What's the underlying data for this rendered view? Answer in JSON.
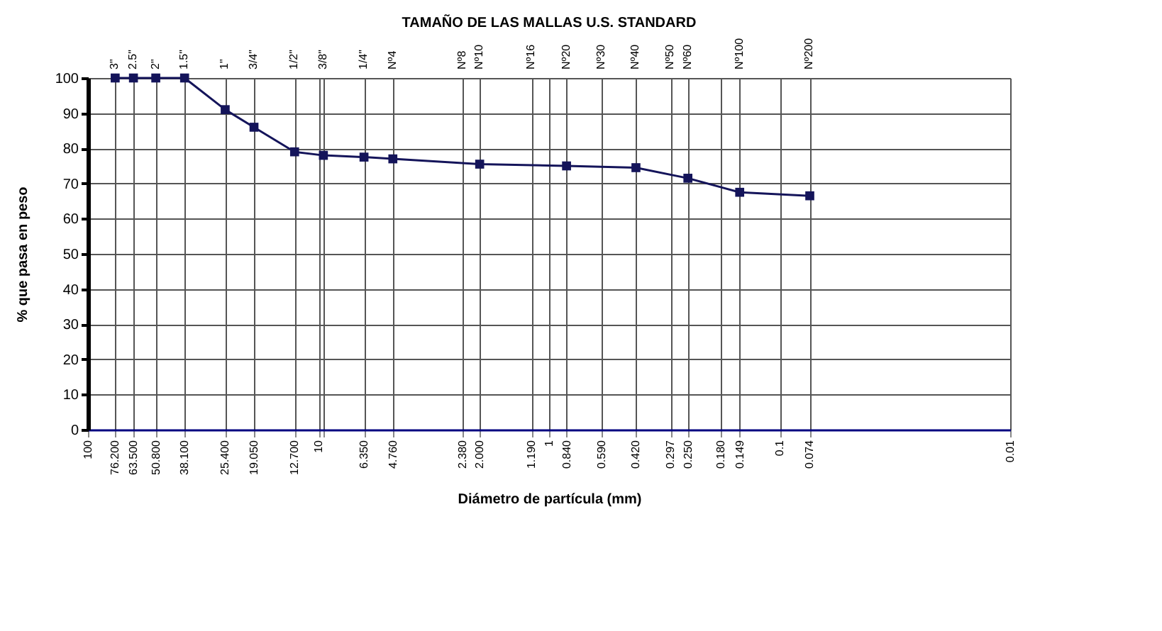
{
  "chart_data": {
    "type": "line",
    "title": "TAMAÑO DE LAS MALLAS U.S. STANDARD",
    "xlabel": "Diámetro de partícula (mm)",
    "ylabel": "% que pasa en peso",
    "x": [
      76.2,
      63.5,
      50.8,
      38.1,
      25.4,
      19.05,
      12.7,
      9.525,
      6.35,
      4.76,
      2.0,
      0.84,
      0.42,
      0.25,
      0.149,
      0.074
    ],
    "series": [
      {
        "color": "#14145a",
        "values": [
          100,
          100,
          100,
          100,
          91,
          86,
          79,
          78,
          77.5,
          77,
          75.5,
          75,
          74.5,
          71.5,
          67.5,
          66.5
        ]
      }
    ],
    "xlim": [
      100,
      0.01
    ],
    "log": "x",
    "xticks": [
      100,
      {
        "value": 76.2,
        "label": "76.200"
      },
      {
        "value": 63.5,
        "label": "63.500"
      },
      {
        "value": 50.8,
        "label": "50.800"
      },
      {
        "value": 38.1,
        "label": "38.100"
      },
      {
        "value": 25.4,
        "label": "25.400"
      },
      {
        "value": 19.05,
        "label": "19.050"
      },
      {
        "value": 12.7,
        "label": "12.700"
      },
      {
        "value": 9.525,
        "label": null
      },
      10,
      {
        "value": 6.35,
        "label": "6.350"
      },
      {
        "value": 4.76,
        "label": "4.760"
      },
      {
        "value": 2.38,
        "label": "2.380"
      },
      {
        "value": 2.0,
        "label": "2.000"
      },
      {
        "value": 1.19,
        "label": "1.190"
      },
      1,
      {
        "value": 0.84,
        "label": "0.840"
      },
      {
        "value": 0.59,
        "label": "0.590"
      },
      {
        "value": 0.42,
        "label": "0.420"
      },
      {
        "value": 0.297,
        "label": "0.297"
      },
      {
        "value": 0.25,
        "label": "0.250"
      },
      {
        "value": 0.18,
        "label": "0.180"
      },
      {
        "value": 0.149,
        "label": "0.149"
      },
      0.1,
      {
        "value": 0.074,
        "label": "0.074"
      },
      0.01
    ],
    "annotations": [
      "3\"",
      "2.5\"",
      "2\"",
      "1.5\"",
      "1\"",
      "3/4\"",
      "1/2\"",
      "3/8\"",
      "1/4\"",
      "Nº4",
      "Nº8",
      "Nº10",
      "Nº16",
      "Nº20",
      "Nº30",
      "Nº40",
      "Nº50",
      "Nº60",
      null,
      "Nº100",
      "Nº200"
    ],
    "ylim": [
      0,
      100
    ],
    "yticks": [
      0,
      10,
      20,
      30,
      40,
      50,
      60,
      70,
      80,
      90,
      100
    ],
    "grid": true,
    "marker": "square",
    "line_style": "solid"
  }
}
